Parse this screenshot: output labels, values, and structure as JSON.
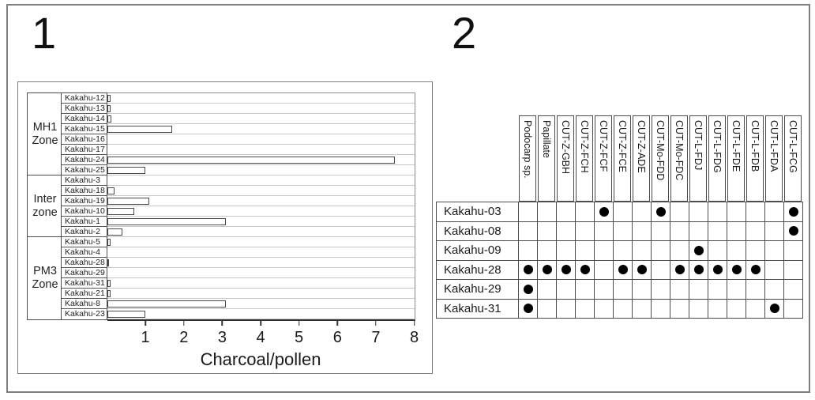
{
  "panel1": {
    "label": "1"
  },
  "panel2": {
    "label": "2"
  },
  "chart_data": [
    {
      "type": "bar",
      "panel": "1",
      "orientation": "horizontal",
      "xlabel": "Charcoal/pollen",
      "xlim": [
        0,
        8
      ],
      "xticks": [
        1,
        2,
        3,
        4,
        5,
        6,
        7,
        8
      ],
      "grid": "horizontal-light",
      "bar_style": {
        "fill": "#ffffff",
        "border": "#4a4a4a"
      },
      "groups": [
        {
          "zone": "MH1 Zone",
          "samples": [
            {
              "label": "Kakahu-12",
              "value": 0.1
            },
            {
              "label": "Kakahu-13",
              "value": 0.1
            },
            {
              "label": "Kakahu-14",
              "value": 0.12
            },
            {
              "label": "Kakahu-15",
              "value": 1.7
            },
            {
              "label": "Kakahu-16",
              "value": 0
            },
            {
              "label": "Kakahu-17",
              "value": 0
            },
            {
              "label": "Kakahu-24",
              "value": 7.5
            },
            {
              "label": "Kakahu-25",
              "value": 1.0
            }
          ]
        },
        {
          "zone": "Inter zone",
          "samples": [
            {
              "label": "Kakahu-3",
              "value": 0
            },
            {
              "label": "Kakahu-18",
              "value": 0.2
            },
            {
              "label": "Kakahu-19",
              "value": 1.1
            },
            {
              "label": "Kakahu-10",
              "value": 0.7
            },
            {
              "label": "Kakahu-1",
              "value": 3.1
            },
            {
              "label": "Kakahu-2",
              "value": 0.4
            }
          ]
        },
        {
          "zone": "PM3 Zone",
          "samples": [
            {
              "label": "Kakahu-5",
              "value": 0.1
            },
            {
              "label": "Kakahu-4",
              "value": 0
            },
            {
              "label": "Kakahu-28",
              "value": 0.05
            },
            {
              "label": "Kakahu-29",
              "value": 0
            },
            {
              "label": "Kakahu-31",
              "value": 0.1
            },
            {
              "label": "Kakahu-21",
              "value": 0.1
            },
            {
              "label": "Kakahu-8",
              "value": 3.1
            },
            {
              "label": "Kakahu-23",
              "value": 1.0
            }
          ]
        }
      ]
    },
    {
      "type": "table",
      "panel": "2",
      "columns": [
        "Podocarp sp.",
        "Papillate",
        "CUT-Z-GBH",
        "CUT-Z-FCH",
        "CUT-Z-FCF",
        "CUT-Z-FCE",
        "CUT-Z-ADE",
        "CUT-Mo-FDD",
        "CUT-Mo-FDC",
        "CUT-L-FDJ",
        "CUT-L-FDG",
        "CUT-L-FDE",
        "CUT-L-FDB",
        "CUT-L-FDA",
        "CUT-L-FCG"
      ],
      "rows": [
        {
          "label": "Kakahu-03",
          "dots": [
            0,
            0,
            0,
            0,
            1,
            0,
            0,
            1,
            0,
            0,
            0,
            0,
            0,
            0,
            1
          ]
        },
        {
          "label": "Kakahu-08",
          "dots": [
            0,
            0,
            0,
            0,
            0,
            0,
            0,
            0,
            0,
            0,
            0,
            0,
            0,
            0,
            1
          ]
        },
        {
          "label": "Kakahu-09",
          "dots": [
            0,
            0,
            0,
            0,
            0,
            0,
            0,
            0,
            0,
            1,
            0,
            0,
            0,
            0,
            0
          ]
        },
        {
          "label": "Kakahu-28",
          "dots": [
            1,
            1,
            1,
            1,
            0,
            1,
            1,
            0,
            1,
            1,
            1,
            1,
            1,
            0,
            0
          ]
        },
        {
          "label": "Kakahu-29",
          "dots": [
            1,
            0,
            0,
            0,
            0,
            0,
            0,
            0,
            0,
            0,
            0,
            0,
            0,
            0,
            0
          ]
        },
        {
          "label": "Kakahu-31",
          "dots": [
            1,
            0,
            0,
            0,
            0,
            0,
            0,
            0,
            0,
            0,
            0,
            0,
            0,
            1,
            0
          ]
        }
      ],
      "dot_symbol": "filled-circle"
    }
  ],
  "colors": {
    "background": "#ffffff",
    "frame_border": "#7f7f7f",
    "cell_border": "#4d4d4d",
    "gridline": "#c8c8c8",
    "bar_fill": "#ffffff",
    "bar_border": "#4a4a4a",
    "dot": "#000000",
    "text": "#1a1a1a"
  }
}
